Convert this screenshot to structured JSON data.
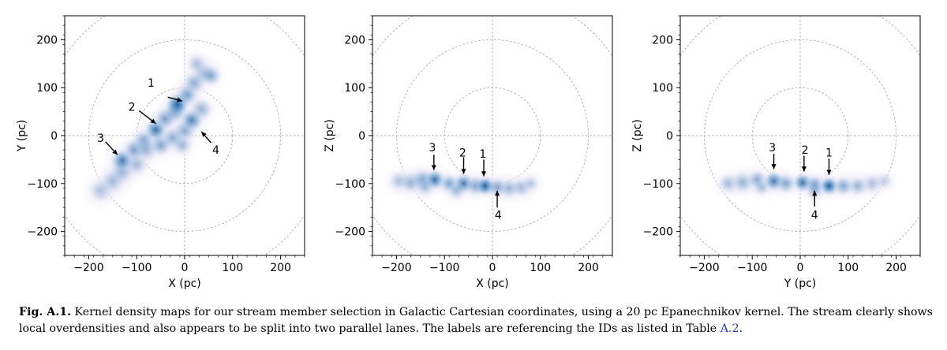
{
  "chart_data": [
    {
      "type": "heatmap",
      "xlabel": "X (pc)",
      "ylabel": "Y (pc)",
      "xlim": [
        -250,
        250
      ],
      "ylim": [
        -250,
        250
      ],
      "xticks": [
        -200,
        -100,
        0,
        100,
        200
      ],
      "yticks": [
        -200,
        -100,
        0,
        100,
        200
      ],
      "xtick_labels": [
        "−200",
        "−100",
        "0",
        "100",
        "200"
      ],
      "ytick_labels": [
        "−200",
        "−100",
        "0",
        "100",
        "200"
      ],
      "reference_circles_radius": [
        100,
        200,
        300
      ],
      "colormap": "blues",
      "density_blobs": [
        {
          "x": -175,
          "y": -115,
          "r": 22,
          "w": 0.3
        },
        {
          "x": -150,
          "y": -95,
          "r": 22,
          "w": 0.35
        },
        {
          "x": -130,
          "y": -75,
          "r": 22,
          "w": 0.4
        },
        {
          "x": -130,
          "y": -52,
          "r": 20,
          "w": 0.8
        },
        {
          "x": -105,
          "y": -30,
          "r": 20,
          "w": 0.55
        },
        {
          "x": -85,
          "y": -10,
          "r": 20,
          "w": 0.5
        },
        {
          "x": -60,
          "y": 12,
          "r": 20,
          "w": 0.85
        },
        {
          "x": -40,
          "y": 35,
          "r": 20,
          "w": 0.55
        },
        {
          "x": -20,
          "y": 50,
          "r": 20,
          "w": 0.55
        },
        {
          "x": -15,
          "y": 65,
          "r": 20,
          "w": 1.0
        },
        {
          "x": 5,
          "y": 85,
          "r": 20,
          "w": 0.55
        },
        {
          "x": 20,
          "y": 110,
          "r": 20,
          "w": 0.45
        },
        {
          "x": 40,
          "y": 130,
          "r": 20,
          "w": 0.35
        },
        {
          "x": 55,
          "y": 125,
          "r": 18,
          "w": 0.45
        },
        {
          "x": 25,
          "y": 150,
          "r": 18,
          "w": 0.3
        },
        {
          "x": -80,
          "y": -30,
          "r": 20,
          "w": 0.4
        },
        {
          "x": -50,
          "y": -20,
          "r": 20,
          "w": 0.5
        },
        {
          "x": -25,
          "y": -5,
          "r": 20,
          "w": 0.45
        },
        {
          "x": 0,
          "y": 10,
          "r": 20,
          "w": 0.45
        },
        {
          "x": 15,
          "y": 32,
          "r": 20,
          "w": 0.75
        },
        {
          "x": 35,
          "y": 55,
          "r": 20,
          "w": 0.4
        },
        {
          "x": -5,
          "y": -20,
          "r": 18,
          "w": 0.35
        },
        {
          "x": -100,
          "y": -60,
          "r": 20,
          "w": 0.35
        }
      ],
      "labels": [
        {
          "text": "1",
          "x": -70,
          "y": 110,
          "ax": -35,
          "ay": 80,
          "bx": -5,
          "by": 72
        },
        {
          "text": "2",
          "x": -110,
          "y": 60,
          "ax": -95,
          "ay": 52,
          "bx": -60,
          "by": 25
        },
        {
          "text": "3",
          "x": -175,
          "y": -5,
          "ax": -165,
          "ay": -13,
          "bx": -140,
          "by": -40
        },
        {
          "text": "4",
          "x": 65,
          "y": -30,
          "ax": 55,
          "ay": -15,
          "bx": 35,
          "by": 8
        }
      ]
    },
    {
      "type": "heatmap",
      "xlabel": "X (pc)",
      "ylabel": "Z (pc)",
      "xlim": [
        -250,
        250
      ],
      "ylim": [
        -250,
        250
      ],
      "xticks": [
        -200,
        -100,
        0,
        100,
        200
      ],
      "yticks": [
        -200,
        -100,
        0,
        100,
        200
      ],
      "xtick_labels": [
        "−200",
        "−100",
        "0",
        "100",
        "200"
      ],
      "ytick_labels": [
        "−200",
        "−100",
        "0",
        "100",
        "200"
      ],
      "reference_circles_radius": [
        100,
        200,
        300
      ],
      "colormap": "blues",
      "density_blobs": [
        {
          "x": -195,
          "y": -95,
          "r": 18,
          "w": 0.3
        },
        {
          "x": -170,
          "y": -98,
          "r": 20,
          "w": 0.4
        },
        {
          "x": -145,
          "y": -92,
          "r": 20,
          "w": 0.5
        },
        {
          "x": -120,
          "y": -92,
          "r": 18,
          "w": 0.85
        },
        {
          "x": -90,
          "y": -100,
          "r": 18,
          "w": 0.5
        },
        {
          "x": -60,
          "y": -100,
          "r": 18,
          "w": 0.8
        },
        {
          "x": -35,
          "y": -105,
          "r": 18,
          "w": 0.5
        },
        {
          "x": -15,
          "y": -105,
          "r": 17,
          "w": 1.0
        },
        {
          "x": 10,
          "y": -108,
          "r": 18,
          "w": 0.5
        },
        {
          "x": 35,
          "y": -110,
          "r": 18,
          "w": 0.4
        },
        {
          "x": 60,
          "y": -108,
          "r": 18,
          "w": 0.35
        },
        {
          "x": 80,
          "y": -100,
          "r": 15,
          "w": 0.25
        },
        {
          "x": -75,
          "y": -115,
          "r": 16,
          "w": 0.35
        },
        {
          "x": -140,
          "y": -108,
          "r": 16,
          "w": 0.3
        }
      ],
      "labels": [
        {
          "text": "3",
          "x": -125,
          "y": -25,
          "ax": -122,
          "ay": -40,
          "bx": -122,
          "by": -72
        },
        {
          "text": "2",
          "x": -62,
          "y": -35,
          "ax": -60,
          "ay": -45,
          "bx": -60,
          "by": -80
        },
        {
          "text": "1",
          "x": -20,
          "y": -38,
          "ax": -18,
          "ay": -50,
          "bx": -18,
          "by": -85
        },
        {
          "text": "4",
          "x": 12,
          "y": -165,
          "ax": 10,
          "ay": -150,
          "bx": 10,
          "by": -115
        }
      ]
    },
    {
      "type": "heatmap",
      "xlabel": "Y (pc)",
      "ylabel": "Z (pc)",
      "xlim": [
        -250,
        250
      ],
      "ylim": [
        -250,
        250
      ],
      "xticks": [
        -200,
        -100,
        0,
        100,
        200
      ],
      "yticks": [
        -200,
        -100,
        0,
        100,
        200
      ],
      "xtick_labels": [
        "−200",
        "−100",
        "0",
        "100",
        "200"
      ],
      "ytick_labels": [
        "−200",
        "−100",
        "0",
        "100",
        "200"
      ],
      "reference_circles_radius": [
        100,
        200,
        300
      ],
      "colormap": "blues",
      "density_blobs": [
        {
          "x": -150,
          "y": -100,
          "r": 18,
          "w": 0.35
        },
        {
          "x": -120,
          "y": -98,
          "r": 20,
          "w": 0.4
        },
        {
          "x": -90,
          "y": -92,
          "r": 18,
          "w": 0.45
        },
        {
          "x": -55,
          "y": -95,
          "r": 18,
          "w": 0.8
        },
        {
          "x": -30,
          "y": -100,
          "r": 18,
          "w": 0.5
        },
        {
          "x": 5,
          "y": -98,
          "r": 17,
          "w": 0.85
        },
        {
          "x": 30,
          "y": -102,
          "r": 17,
          "w": 0.55
        },
        {
          "x": 60,
          "y": -105,
          "r": 17,
          "w": 1.0
        },
        {
          "x": 90,
          "y": -105,
          "r": 18,
          "w": 0.5
        },
        {
          "x": 120,
          "y": -105,
          "r": 18,
          "w": 0.4
        },
        {
          "x": 150,
          "y": -100,
          "r": 18,
          "w": 0.3
        },
        {
          "x": 175,
          "y": -95,
          "r": 15,
          "w": 0.2
        },
        {
          "x": 30,
          "y": -115,
          "r": 16,
          "w": 0.35
        },
        {
          "x": -80,
          "y": -108,
          "r": 15,
          "w": 0.3
        }
      ],
      "labels": [
        {
          "text": "3",
          "x": -58,
          "y": -25,
          "ax": -55,
          "ay": -38,
          "bx": -55,
          "by": -70
        },
        {
          "text": "2",
          "x": 10,
          "y": -30,
          "ax": 8,
          "ay": -42,
          "bx": 8,
          "by": -75
        },
        {
          "text": "1",
          "x": 60,
          "y": -35,
          "ax": 60,
          "ay": -48,
          "bx": 60,
          "by": -82
        },
        {
          "text": "4",
          "x": 30,
          "y": -165,
          "ax": 30,
          "ay": -148,
          "bx": 30,
          "by": -115
        }
      ]
    }
  ],
  "caption": {
    "label": "Fig. A.1.",
    "text_before_ref": " Kernel density maps for our stream member selection in Galactic Cartesian coordinates, using a 20 pc Epanechnikov kernel. The stream clearly shows local overdensities and also appears to be split into two parallel lanes. The labels are referencing the IDs as listed in Table ",
    "table_ref": "A.2",
    "text_after_ref": "."
  }
}
